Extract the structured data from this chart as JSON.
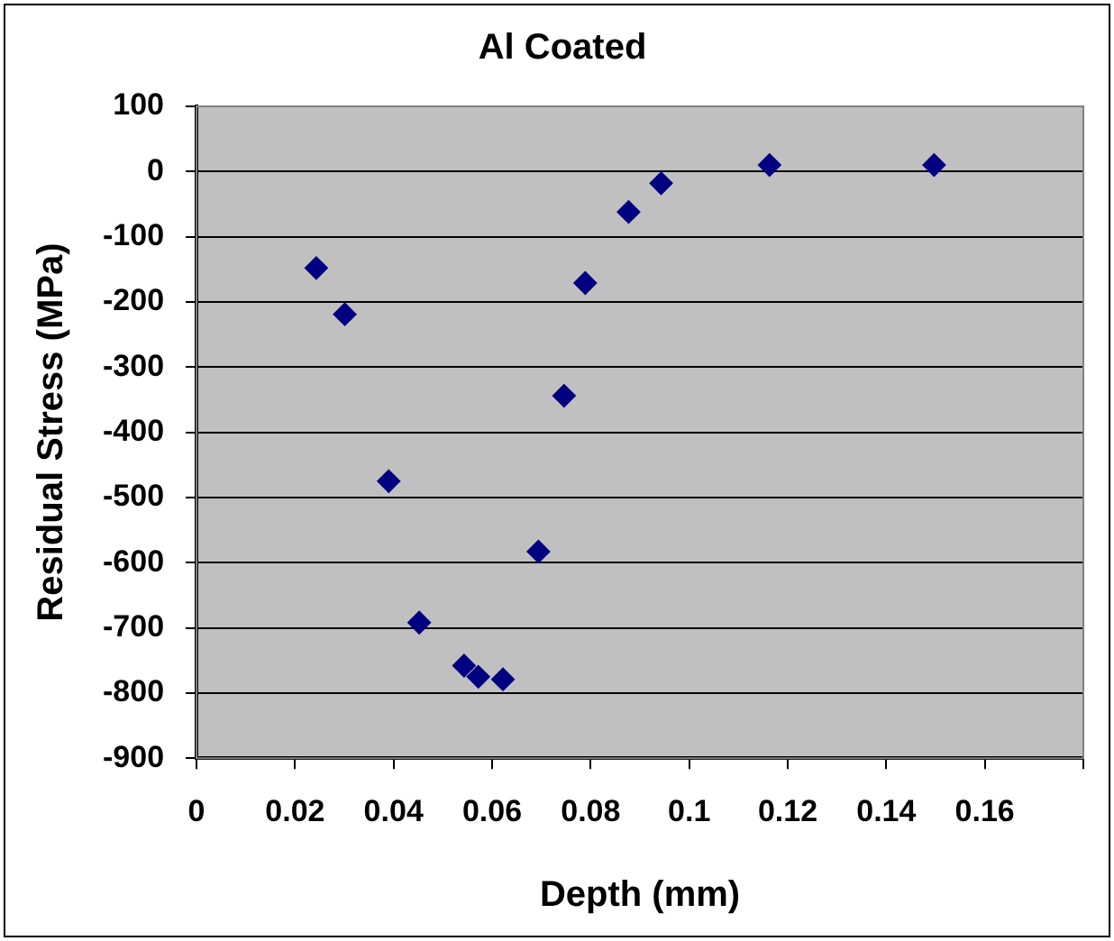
{
  "chart_data": {
    "type": "scatter",
    "title": "Al Coated",
    "xlabel": "Depth (mm)",
    "ylabel": "Residual Stress (MPa)",
    "x": [
      0.0243,
      0.0301,
      0.039,
      0.0452,
      0.0543,
      0.0572,
      0.0622,
      0.0694,
      0.0746,
      0.0789,
      0.0877,
      0.0943,
      0.1163,
      0.1497
    ],
    "values": [
      -148,
      -219,
      -475,
      -692,
      -758,
      -775,
      -779,
      -583,
      -344,
      -171,
      -62,
      -18,
      10,
      10
    ],
    "color": "#000080",
    "marker": "diamond",
    "grid": "y",
    "xlim": [
      0,
      0.18
    ],
    "xticks": [
      0,
      0.02,
      0.04,
      0.06,
      0.08,
      0.1,
      0.12,
      0.14,
      0.16,
      {
        "value": 0.18,
        "label": null
      }
    ],
    "ylim": [
      -900,
      100
    ],
    "yticks": [
      -900,
      -800,
      -700,
      -600,
      -500,
      -400,
      -300,
      -200,
      -100,
      0,
      100
    ]
  }
}
